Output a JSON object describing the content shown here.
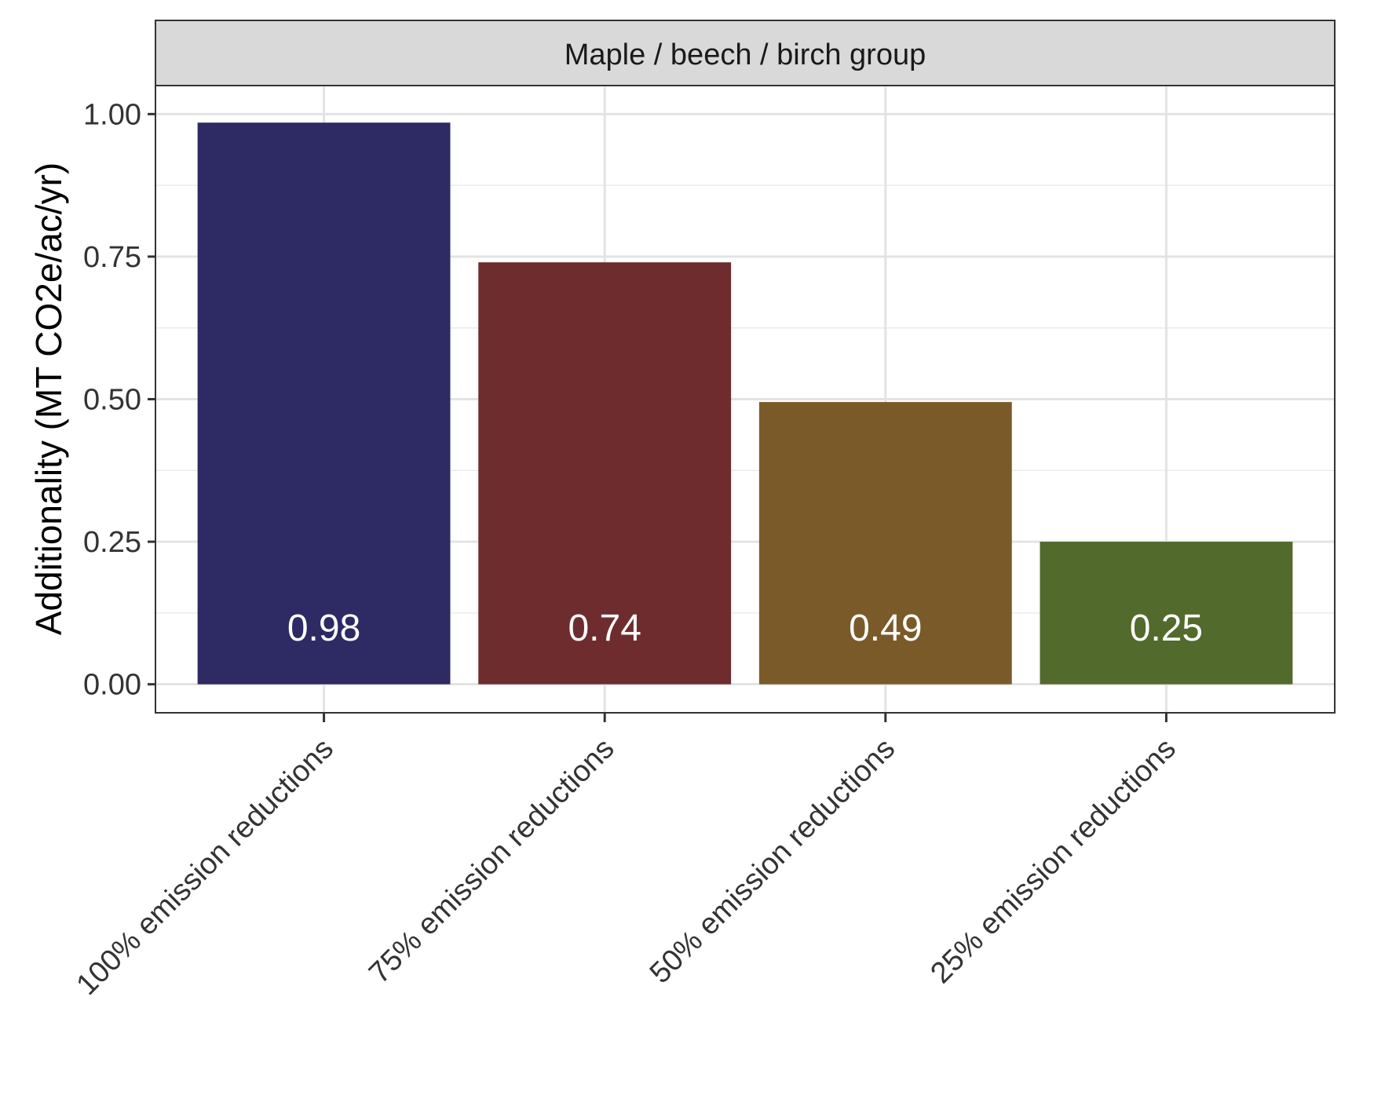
{
  "chart_data": {
    "type": "bar",
    "facet_title": "Maple / beech / birch group",
    "ylabel": "Additionality (MT CO2e/ac/yr)",
    "xlabel": "",
    "ylim": [
      -0.05,
      1.05
    ],
    "yticks": [
      0.0,
      0.25,
      0.5,
      0.75,
      1.0
    ],
    "ytick_labels": [
      "0.00",
      "0.25",
      "0.50",
      "0.75",
      "1.00"
    ],
    "categories": [
      "100% emission reductions",
      "75% emission reductions",
      "50% emission reductions",
      "25% emission reductions"
    ],
    "values": [
      0.985,
      0.74,
      0.495,
      0.25
    ],
    "data_labels": [
      "0.98",
      "0.74",
      "0.49",
      "0.25"
    ],
    "colors": [
      "#2d2a64",
      "#6e2c2e",
      "#7a5a29",
      "#526a2c"
    ],
    "grid": true,
    "legend": "none"
  }
}
